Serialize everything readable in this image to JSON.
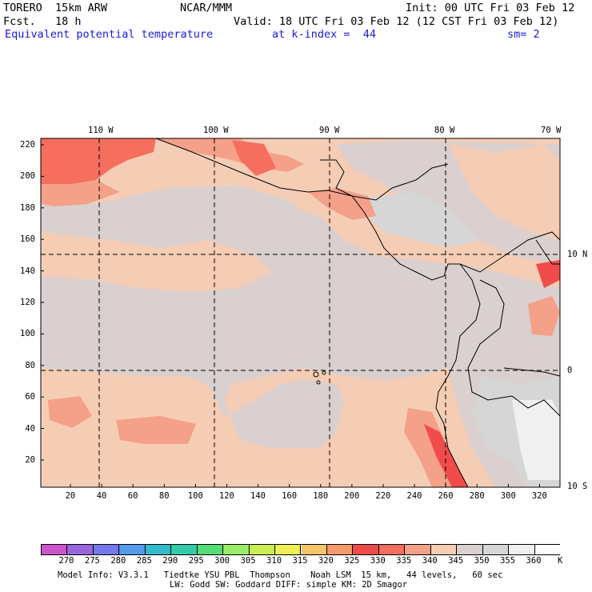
{
  "header": {
    "model": "TORERO  15km ARW",
    "center": "NCAR/MMM",
    "init": "Init: 00 UTC Fri 03 Feb 12",
    "fcst": "Fcst.   18 h",
    "valid": "Valid: 18 UTC Fri 03 Feb 12 (12 CST Fri 03 Feb 12)",
    "field": "Equivalent potential temperature",
    "level": "at k-index =  44",
    "smoothing": "sm= 2"
  },
  "map": {
    "lon_labels": [
      "110 W",
      "100 W",
      "90 W",
      "80 W",
      "70 W"
    ],
    "lat_labels": [
      "10 N",
      "0",
      "10 S"
    ],
    "y_ticks": [
      "220",
      "200",
      "180",
      "160",
      "140",
      "120",
      "100",
      "80",
      "60",
      "40",
      "20"
    ],
    "x_ticks": [
      "20",
      "40",
      "60",
      "80",
      "100",
      "120",
      "140",
      "160",
      "180",
      "200",
      "220",
      "240",
      "260",
      "280",
      "300",
      "320"
    ]
  },
  "colorbar": {
    "labels": [
      "270",
      "275",
      "280",
      "285",
      "290",
      "295",
      "300",
      "305",
      "310",
      "315",
      "320",
      "325",
      "330",
      "335",
      "340",
      "345",
      "350",
      "355",
      "360"
    ],
    "unit": "K",
    "colors": [
      "#cc55cc",
      "#9966dd",
      "#7777ee",
      "#5599ee",
      "#33bbcc",
      "#33ccaa",
      "#55dd77",
      "#99ee66",
      "#ccee55",
      "#eeee55",
      "#f5c56a",
      "#f59a6a",
      "#f04c4c",
      "#f56e5e",
      "#f5a089",
      "#f5cdb5",
      "#d9d0cf",
      "#d6d6d6",
      "#f0f0f0",
      "#ffffff"
    ]
  },
  "footer": {
    "line1": "Model Info: V3.3.1   Tiedtke YSU PBL  Thompson    Noah LSM  15 km,   44 levels,   60 sec",
    "line2": "LW: Godd SW: Goddard DIFF: simple KM: 2D Smagor"
  }
}
